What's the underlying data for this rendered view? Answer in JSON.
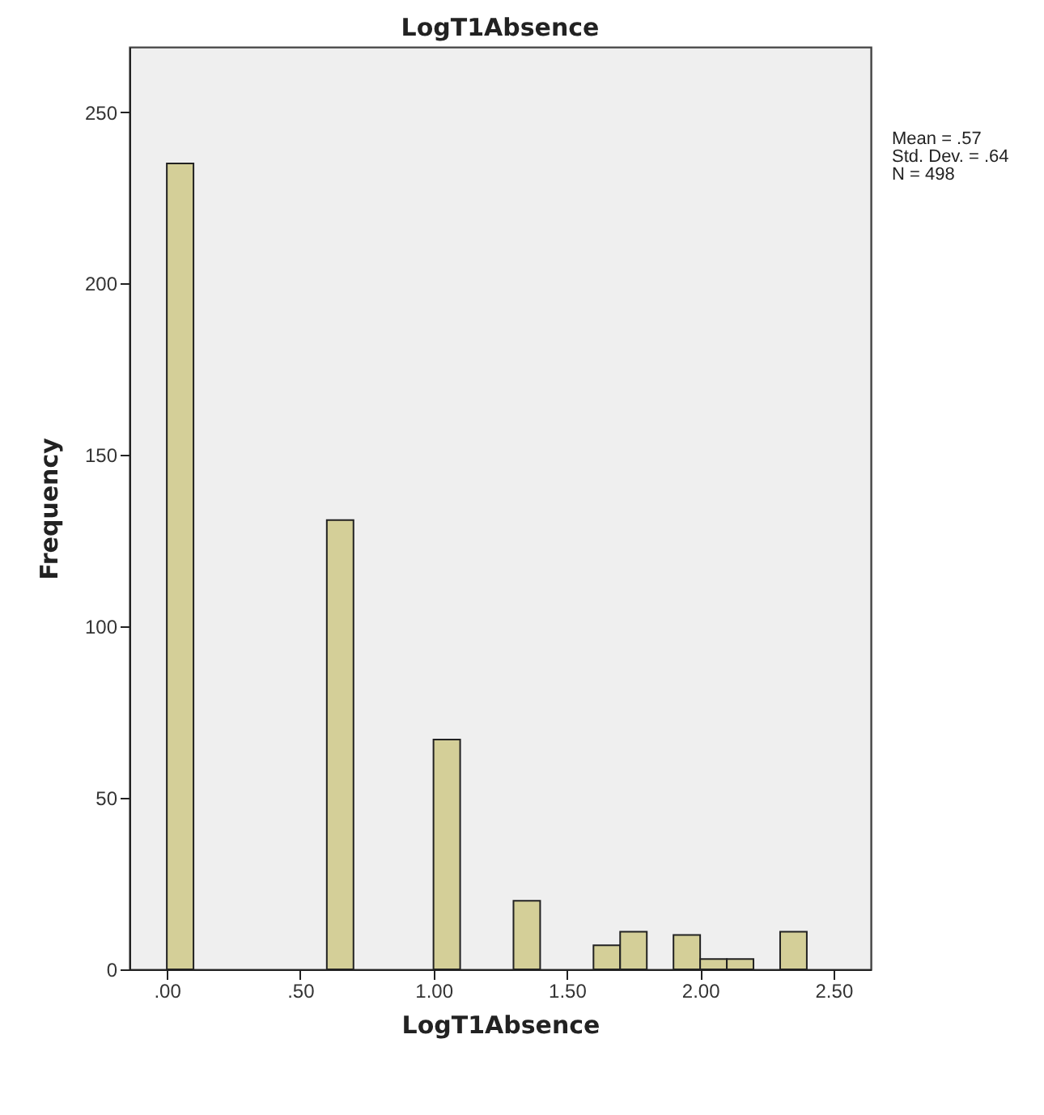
{
  "chart_data": {
    "type": "histogram",
    "title": "LogT1Absence",
    "xlabel": "LogT1Absence",
    "ylabel": "Frequency",
    "bins": [
      0,
      0.1,
      0.2,
      0.3,
      0.4,
      0.5,
      0.6,
      0.7,
      0.8,
      0.9,
      1.0,
      1.1,
      1.2,
      1.3,
      1.4,
      1.5,
      1.6,
      1.7,
      1.8,
      1.9,
      2.0,
      2.1,
      2.2,
      2.3,
      2.4
    ],
    "values": [
      235,
      0,
      0,
      0,
      0,
      0,
      131,
      0,
      0,
      0,
      67,
      0,
      0,
      20,
      0,
      0,
      7,
      11,
      0,
      10,
      3,
      3,
      0,
      11
    ],
    "color": "#d4cf98",
    "xlim": [
      -0.14,
      2.64
    ],
    "ylim": [
      0,
      269
    ],
    "xticks": [
      {
        "value": 0,
        "label": ".00"
      },
      {
        "value": 0.5,
        "label": ".50"
      },
      {
        "value": 1,
        "label": "1.00"
      },
      {
        "value": 1.5,
        "label": "1.50"
      },
      {
        "value": 2,
        "label": "2.00"
      },
      {
        "value": 2.5,
        "label": "2.50"
      }
    ],
    "yticks": [
      0,
      50,
      100,
      150,
      200,
      250
    ],
    "grid": false,
    "annotations": [
      "Mean = .57",
      "Std. Dev. = .64",
      "N = 498"
    ]
  }
}
